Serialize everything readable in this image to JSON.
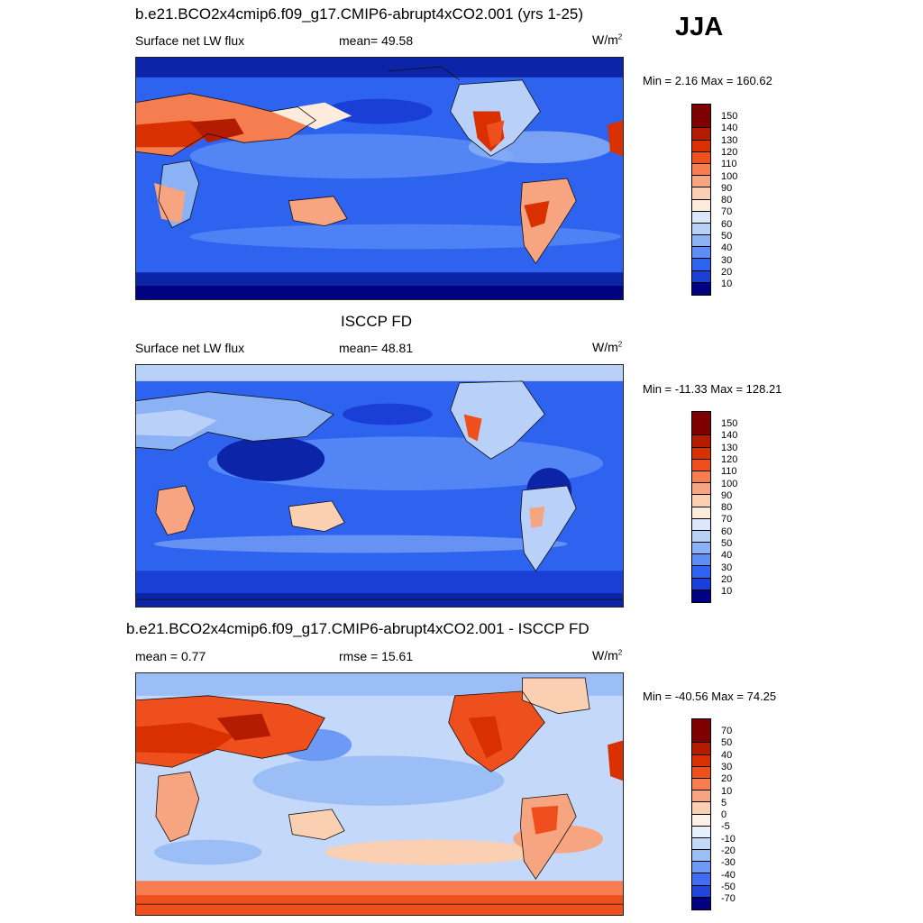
{
  "season": "JJA",
  "panels": [
    {
      "id": "model",
      "title": "b.e21.BCO2x4cmip6.f09_g17.CMIP6-abrupt4xCO2.001 (yrs 1-25)",
      "left_label": "Surface net LW flux",
      "stat_label": "mean=  49.58",
      "units": "W/m",
      "units_sup": "2",
      "minmax": "Min =   2.16 Max = 160.62",
      "colorbar_labels": [
        "150",
        "140",
        "130",
        "120",
        "110",
        "100",
        "90",
        "80",
        "70",
        "60",
        "50",
        "40",
        "30",
        "20",
        "10"
      ],
      "colors": [
        "#7f0000",
        "#b31c00",
        "#d93000",
        "#ef4f1c",
        "#f57d4f",
        "#f7a480",
        "#fbcfb1",
        "#fdebdc",
        "#dbe8fb",
        "#b9d1f8",
        "#8cb2f6",
        "#5c8ef5",
        "#2e63ef",
        "#1a3fd6",
        "#0c24a8",
        "#000080"
      ]
    },
    {
      "id": "obs",
      "title": "ISCCP FD",
      "left_label": "Surface net LW flux",
      "stat_label": "mean=  48.81",
      "units": "W/m",
      "units_sup": "2",
      "minmax": "Min = -11.33 Max = 128.21",
      "colorbar_labels": [
        "150",
        "140",
        "130",
        "120",
        "110",
        "100",
        "90",
        "80",
        "70",
        "60",
        "50",
        "40",
        "30",
        "20",
        "10"
      ],
      "colors": [
        "#7f0000",
        "#b31c00",
        "#d93000",
        "#ef4f1c",
        "#f57d4f",
        "#f7a480",
        "#fbcfb1",
        "#fdebdc",
        "#dbe8fb",
        "#b9d1f8",
        "#8cb2f6",
        "#5c8ef5",
        "#2e63ef",
        "#1a3fd6",
        "#0c24a8",
        "#000080"
      ]
    },
    {
      "id": "diff",
      "title": "b.e21.BCO2x4cmip6.f09_g17.CMIP6-abrupt4xCO2.001 - ISCCP FD",
      "left_label": "mean =   0.77",
      "stat_label": "rmse =  15.61",
      "units": "W/m",
      "units_sup": "2",
      "minmax": "Min = -40.56 Max =  74.25",
      "colorbar_labels": [
        "70",
        "50",
        "40",
        "30",
        "20",
        "10",
        "5",
        "0",
        "-5",
        "-10",
        "-20",
        "-30",
        "-40",
        "-50",
        "-70"
      ],
      "colors": [
        "#7f0000",
        "#b31c00",
        "#d93000",
        "#ef4f1c",
        "#f57d4f",
        "#f7a480",
        "#fbcfb1",
        "#fdf0e6",
        "#e6effc",
        "#c4d9f9",
        "#9cbef7",
        "#6d9af5",
        "#3f6ff0",
        "#1f45da",
        "#0c24a8",
        "#000080"
      ]
    }
  ]
}
